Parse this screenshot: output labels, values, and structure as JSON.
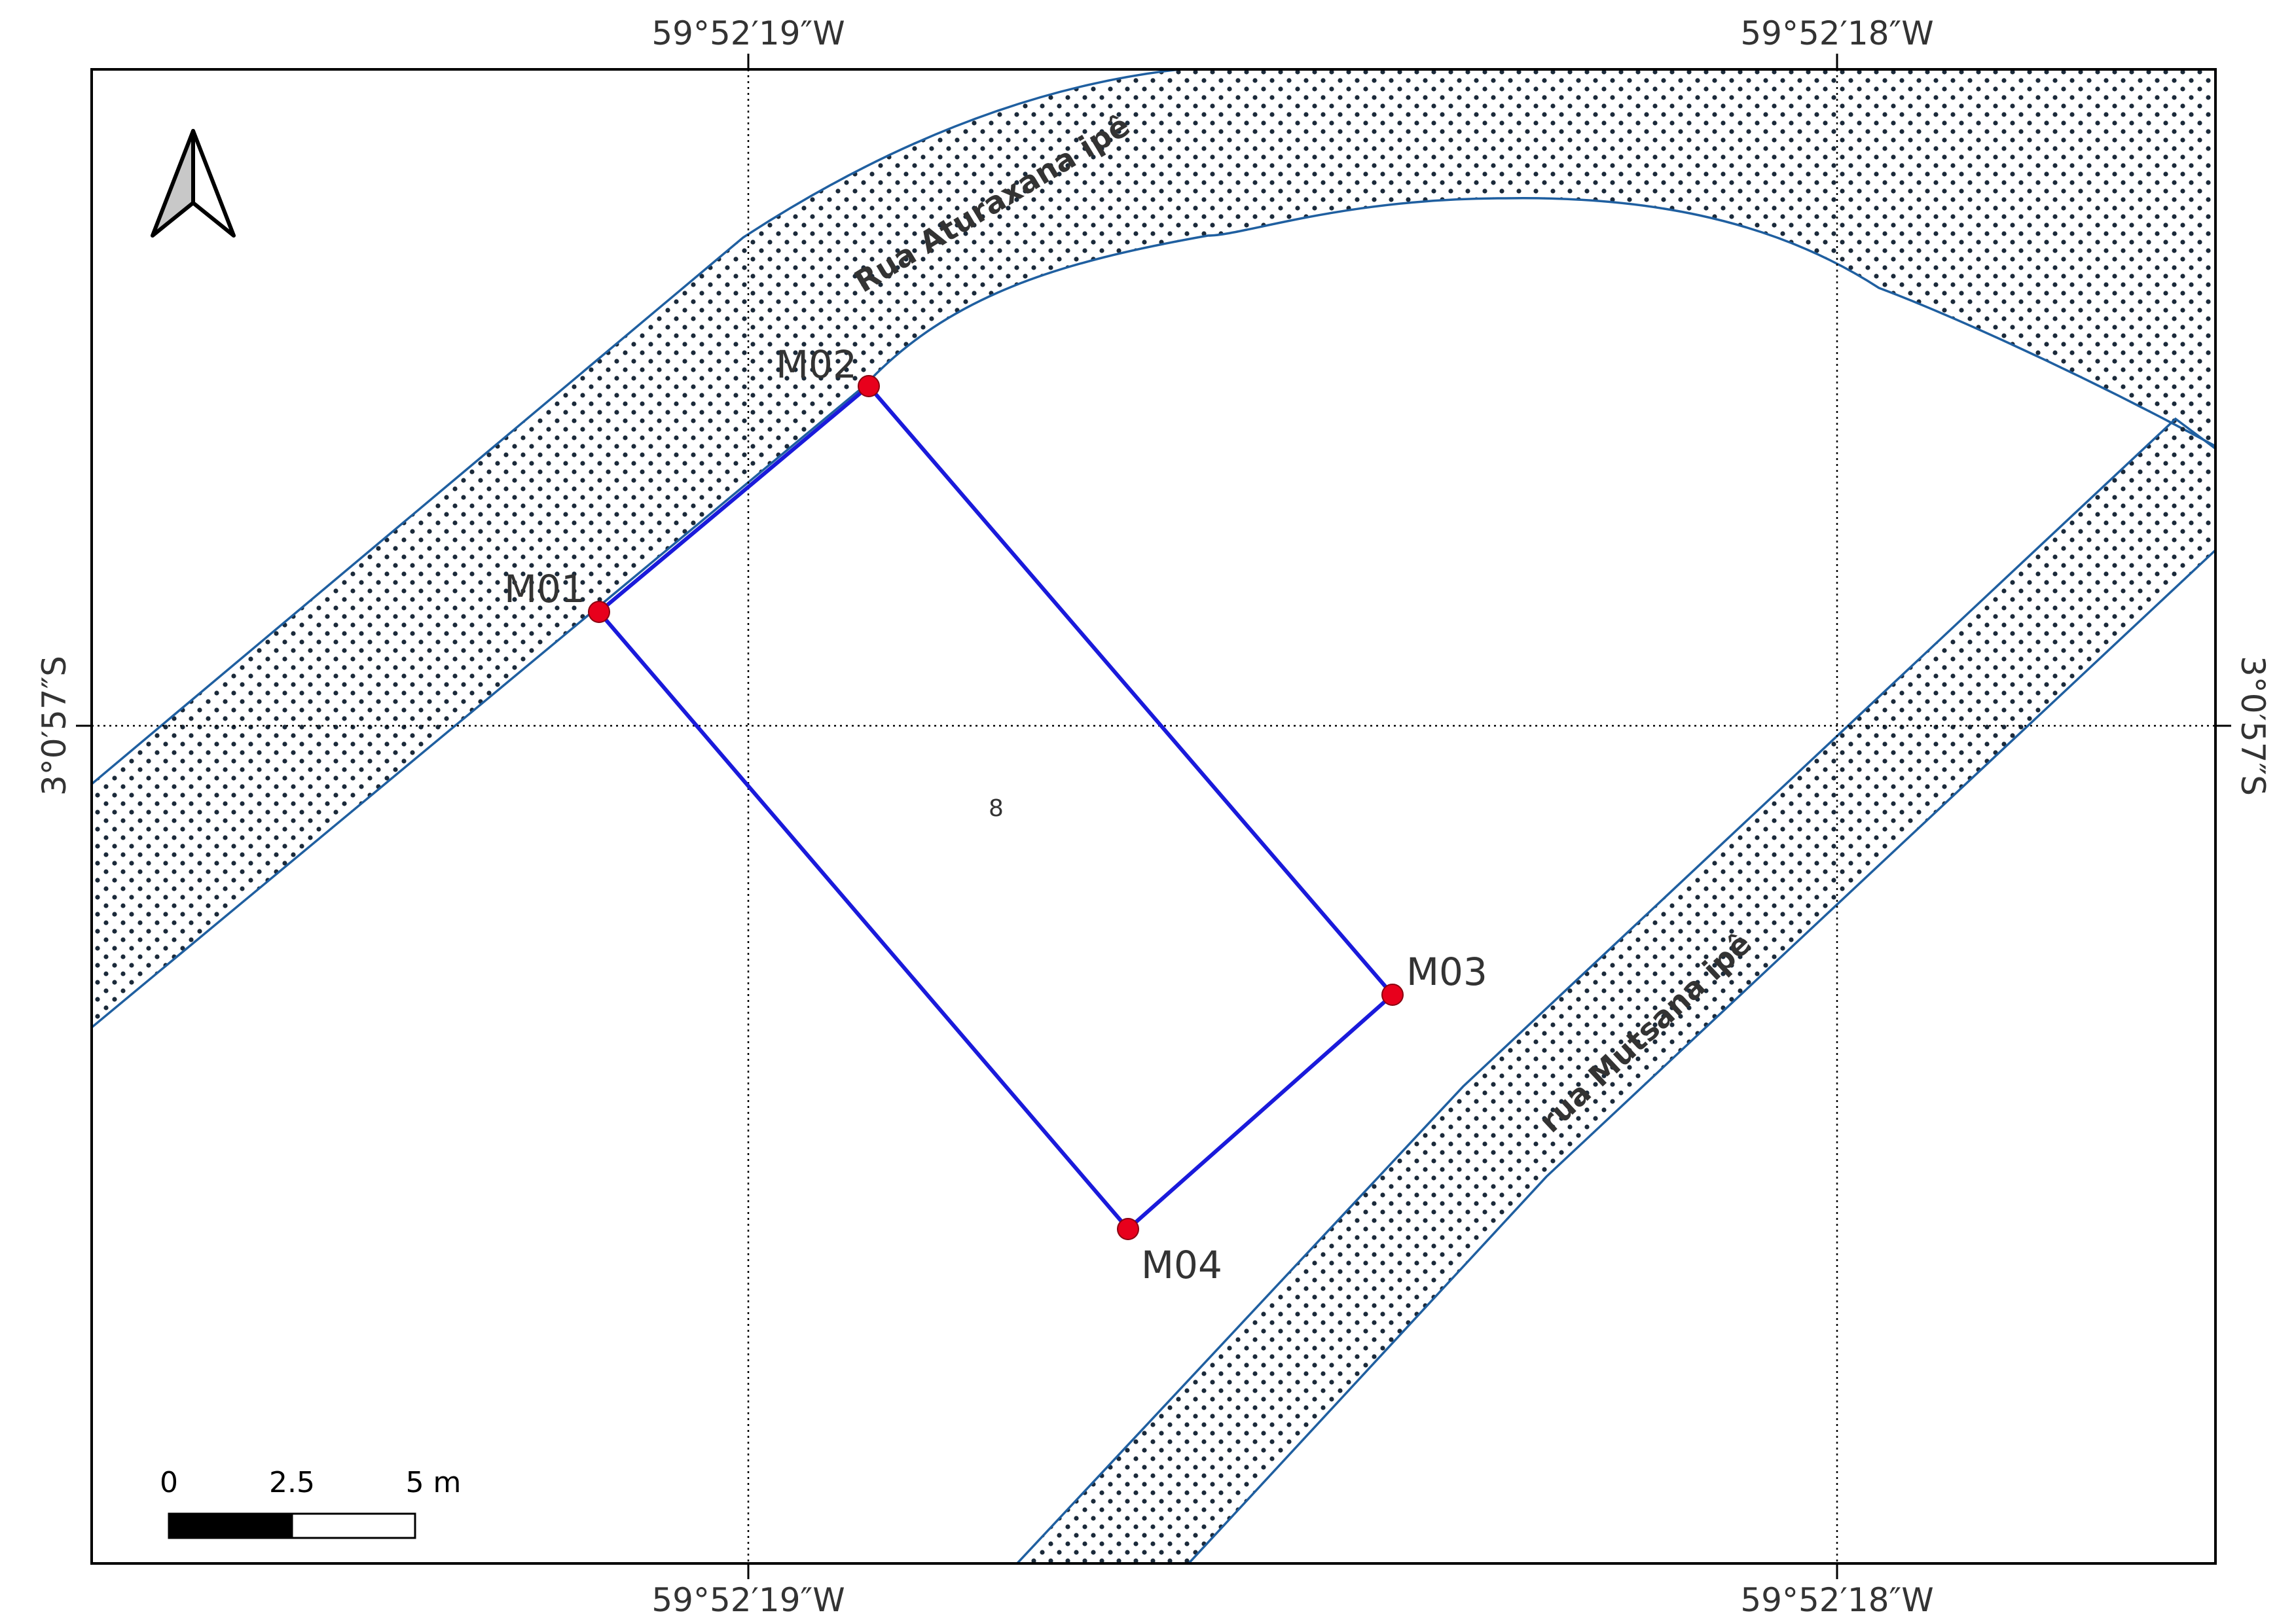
{
  "graticule": {
    "lon_labels": [
      "59°52′19″W",
      "59°52′18″W"
    ],
    "lat_label": "3°0′57″S"
  },
  "streets": [
    {
      "name": "Rua Aturaxana ipê"
    },
    {
      "name": "rua Mutsana ipê"
    }
  ],
  "lot": {
    "number": "8"
  },
  "vertices": [
    {
      "id": "M01"
    },
    {
      "id": "M02"
    },
    {
      "id": "M03"
    },
    {
      "id": "M04"
    }
  ],
  "scale_bar": {
    "labels": [
      "0",
      "2.5",
      "5 m"
    ]
  },
  "colors": {
    "lot_outline": "#1a1adb",
    "vertex": "#e8001c",
    "street_outline": "#1f5fa0",
    "street_dots": "#1b2a3a",
    "frame": "#000000",
    "graticule": "#000000"
  },
  "north_arrow": {
    "icon": "north-arrow-icon"
  }
}
